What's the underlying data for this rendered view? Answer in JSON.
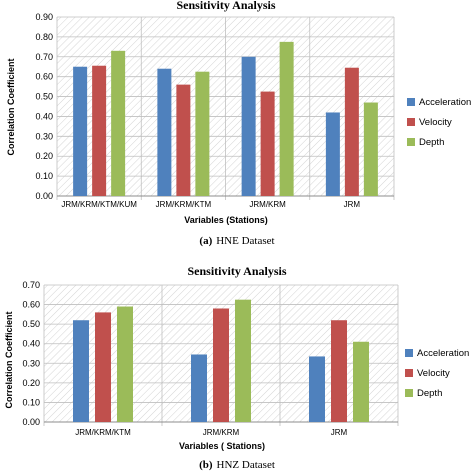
{
  "colors": {
    "Acceleration": "#4f81bd",
    "Velocity": "#c0504d",
    "Depth": "#9bbb59"
  },
  "chart_data": [
    {
      "type": "bar",
      "title": "Sensitivity Analysis",
      "caption_label": "(a)",
      "caption_text": "HNE Dataset",
      "xlabel": "Variables (Stations)",
      "ylabel": "Correlation Coefficient",
      "ylim": [
        0,
        0.9
      ],
      "ytick_labels": [
        "0.00",
        "0.10",
        "0.20",
        "0.30",
        "0.40",
        "0.50",
        "0.60",
        "0.70",
        "0.80",
        "0.90"
      ],
      "grid": true,
      "legend": "right",
      "categories": [
        "JRM/KRM/KTM/KUM",
        "JRM/KRM/KTM",
        "JRM/KRM",
        "JRM"
      ],
      "series": [
        {
          "name": "Acceleration",
          "values": [
            0.65,
            0.64,
            0.7,
            0.42
          ]
        },
        {
          "name": "Velocity",
          "values": [
            0.655,
            0.56,
            0.525,
            0.645
          ]
        },
        {
          "name": "Depth",
          "values": [
            0.73,
            0.625,
            0.775,
            0.47
          ]
        }
      ]
    },
    {
      "type": "bar",
      "title": "Sensitivity Analysis",
      "caption_label": "(b)",
      "caption_text": "HNZ Dataset",
      "xlabel": "Variables ( Stations)",
      "ylabel": "Correlation Coefficient",
      "ylim": [
        0,
        0.7
      ],
      "ytick_labels": [
        "0.00",
        "0.10",
        "0.20",
        "0.30",
        "0.40",
        "0.50",
        "0.60",
        "0.70"
      ],
      "grid": true,
      "legend": "right",
      "categories": [
        "JRM/KRM/KTM",
        "JRM/KRM",
        "JRM"
      ],
      "series": [
        {
          "name": "Acceleration",
          "values": [
            0.52,
            0.345,
            0.335
          ]
        },
        {
          "name": "Velocity",
          "values": [
            0.56,
            0.58,
            0.52
          ]
        },
        {
          "name": "Depth",
          "values": [
            0.59,
            0.625,
            0.41
          ]
        }
      ]
    }
  ]
}
